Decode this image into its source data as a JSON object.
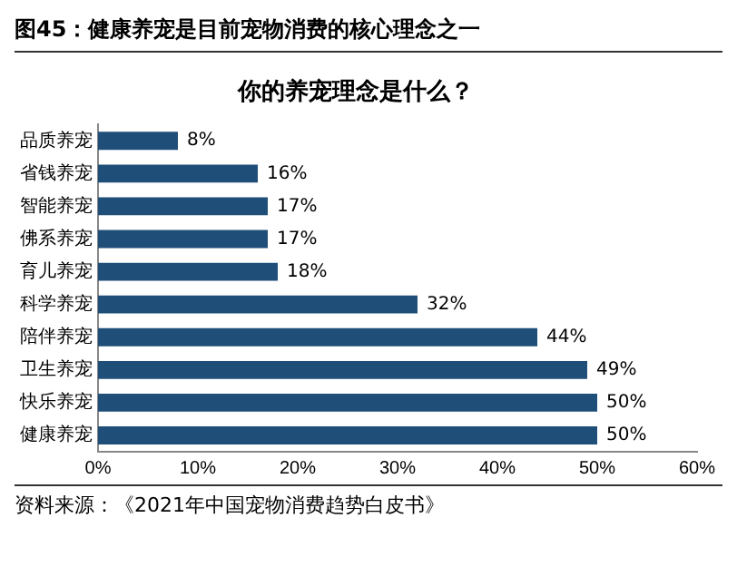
{
  "chart_data": {
    "type": "bar",
    "orientation": "horizontal",
    "title": "图45：健康养宠是目前宠物消费的核心理念之一",
    "subtitle": "你的养宠理念是什么？",
    "categories": [
      "品质养宠",
      "省钱养宠",
      "智能养宠",
      "佛系养宠",
      "育儿养宠",
      "科学养宠",
      "陪伴养宠",
      "卫生养宠",
      "快乐养宠",
      "健康养宠"
    ],
    "values": [
      8,
      16,
      17,
      17,
      18,
      32,
      44,
      49,
      50,
      50
    ],
    "value_labels": [
      "8%",
      "16%",
      "17%",
      "17%",
      "18%",
      "32%",
      "44%",
      "49%",
      "50%",
      "50%"
    ],
    "color": "#1f4e79",
    "xlim": [
      0,
      60
    ],
    "xticks": [
      {
        "value": 0,
        "label": "0%"
      },
      {
        "value": 10,
        "label": "10%"
      },
      {
        "value": 20,
        "label": "20%"
      },
      {
        "value": 30,
        "label": "30%"
      },
      {
        "value": 40,
        "label": "40%"
      },
      {
        "value": 50,
        "label": "50%"
      },
      {
        "value": 60,
        "label": "60%"
      }
    ],
    "grid": false,
    "legend": false,
    "annotations": [
      "资料来源：《2021年中国宠物消费趋势白皮书》"
    ]
  }
}
